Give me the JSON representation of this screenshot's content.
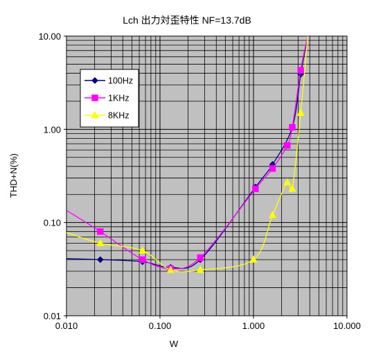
{
  "chart_data": {
    "type": "line",
    "title": "Lch 出力対歪特性 NF=13.7dB",
    "xlabel": "W",
    "ylabel": "THD+N(%)",
    "xscale": "log",
    "yscale": "log",
    "xlim": [
      0.01,
      10
    ],
    "ylim": [
      0.01,
      10
    ],
    "x_tick_labels": [
      "0.010",
      "0.100",
      "1.000",
      "10.000"
    ],
    "y_tick_labels": [
      "0.01",
      "0.10",
      "1.00",
      "10.00"
    ],
    "grid": true,
    "legend_position": "upper-left",
    "plot_background": "#c0c0c0",
    "series": [
      {
        "name": "100Hz",
        "color": "#000080",
        "marker": "diamond",
        "x": [
          0.023,
          0.065,
          0.13,
          0.27,
          1.05,
          1.6,
          2.6,
          3.2
        ],
        "y": [
          0.04,
          0.038,
          0.033,
          0.04,
          0.24,
          0.42,
          1.05,
          3.9
        ],
        "curve_start": [
          0.01,
          0.041
        ],
        "curve_end": [
          3.8,
          10
        ]
      },
      {
        "name": "1KHz",
        "color": "#ff00ff",
        "marker": "square",
        "x": [
          0.023,
          0.065,
          0.13,
          0.27,
          1.05,
          1.6,
          2.3,
          2.6,
          3.2
        ],
        "y": [
          0.08,
          0.04,
          0.032,
          0.042,
          0.23,
          0.38,
          0.67,
          1.05,
          4.3
        ],
        "curve_start": [
          0.01,
          0.135
        ],
        "curve_end": [
          3.8,
          10
        ]
      },
      {
        "name": "8KHz",
        "color": "#ffff00",
        "marker": "triangle",
        "x": [
          0.023,
          0.065,
          0.13,
          0.27,
          1.0,
          1.6,
          2.3,
          2.6,
          3.2
        ],
        "y": [
          0.06,
          0.05,
          0.031,
          0.031,
          0.04,
          0.12,
          0.27,
          0.23,
          1.5
        ],
        "curve_start": [
          0.01,
          0.078
        ],
        "curve_end": [
          3.8,
          10
        ]
      }
    ]
  }
}
